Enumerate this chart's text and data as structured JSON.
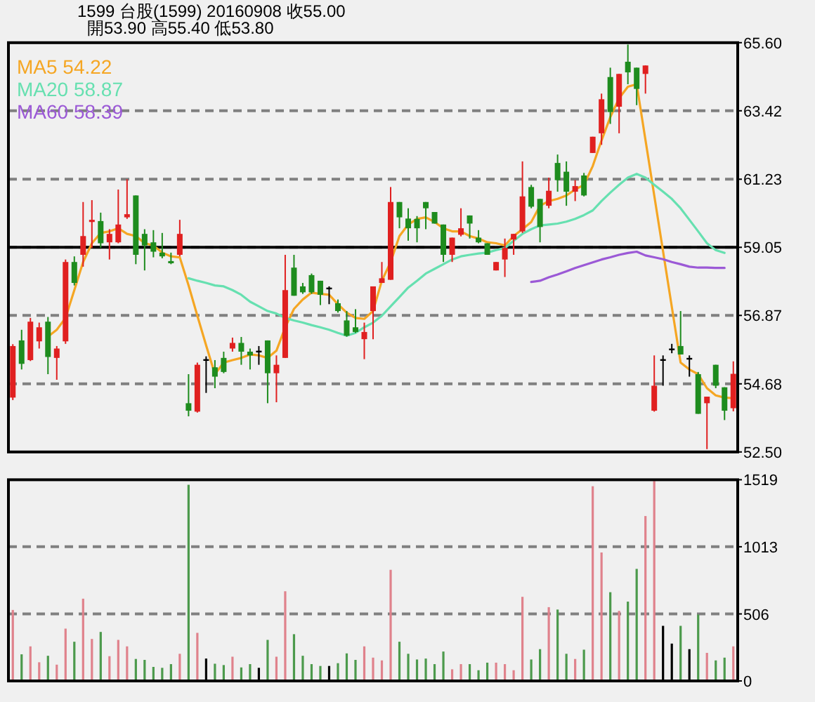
{
  "chart_data": [
    {
      "type": "candlestick",
      "title": "1599  台股(1599)  20160908  收55.00",
      "subtitle": "開53.90  高55.40  低53.80",
      "categories": [
        null,
        null,
        null,
        null,
        null,
        null,
        null,
        null,
        null,
        null,
        null,
        null,
        null,
        null,
        null,
        null,
        null,
        null,
        null,
        null,
        null,
        null,
        null,
        null,
        null,
        null,
        null,
        null,
        null,
        null,
        null,
        null,
        null,
        null,
        null,
        null,
        null,
        null,
        null,
        null,
        null,
        null,
        null,
        null,
        null,
        null,
        null,
        null,
        null,
        null,
        null,
        null,
        null,
        null,
        null,
        null,
        null,
        null,
        null,
        null,
        null,
        null,
        null,
        null,
        null,
        null,
        null,
        null,
        null,
        null,
        null,
        null,
        null,
        null,
        null,
        null,
        null,
        null,
        null,
        null,
        null,
        null,
        null
      ],
      "ohlc": [
        [
          54.24,
          55.95,
          54.16,
          55.89
        ],
        [
          56.07,
          56.41,
          55.14,
          55.32
        ],
        [
          55.44,
          56.79,
          55.41,
          56.67
        ],
        [
          56.04,
          56.64,
          55.81,
          56.49
        ],
        [
          56.67,
          56.82,
          54.99,
          55.54
        ],
        [
          55.51,
          55.89,
          54.81,
          55.81
        ],
        [
          56.04,
          58.66,
          55.96,
          58.58
        ],
        [
          58.58,
          58.76,
          57.83,
          57.91
        ],
        [
          58.81,
          60.5,
          58.43,
          59.41
        ],
        [
          59.86,
          60.56,
          59.03,
          59.93
        ],
        [
          59.89,
          60.16,
          59.03,
          59.18
        ],
        [
          59.21,
          59.63,
          58.66,
          59.48
        ],
        [
          59.21,
          60.9,
          59.18,
          59.78
        ],
        [
          60.01,
          61.23,
          59.96,
          60.11
        ],
        [
          60.71,
          60.71,
          58.51,
          58.81
        ],
        [
          59.48,
          59.63,
          58.31,
          59.11
        ],
        [
          59.21,
          59.6,
          58.73,
          58.91
        ],
        [
          58.88,
          59.51,
          58.7,
          58.76
        ],
        [
          58.61,
          58.88,
          58.51,
          58.54
        ],
        [
          58.81,
          59.93,
          58.76,
          59.48
        ],
        [
          54.06,
          54.99,
          53.64,
          53.82
        ],
        [
          53.79,
          55.36,
          53.76,
          55.29
        ],
        [
          55.47,
          55.56,
          54.39,
          55.47
        ],
        [
          55.21,
          55.44,
          54.54,
          54.91
        ],
        [
          55.51,
          55.71,
          55.02,
          55.06
        ],
        [
          55.81,
          56.16,
          55.71,
          55.99
        ],
        [
          55.99,
          56.18,
          55.29,
          55.71
        ],
        [
          55.71,
          55.81,
          55.14,
          55.59
        ],
        [
          55.74,
          55.89,
          55.29,
          55.74
        ],
        [
          56.07,
          56.07,
          54.06,
          55.02
        ],
        [
          55.02,
          55.59,
          54.09,
          55.29
        ],
        [
          55.51,
          58.81,
          55.51,
          57.68
        ],
        [
          58.4,
          58.81,
          57.5,
          57.5
        ],
        [
          57.8,
          57.91,
          57.56,
          57.61
        ],
        [
          58.16,
          58.21,
          57.56,
          57.61
        ],
        [
          57.98,
          57.98,
          57.2,
          57.53
        ],
        [
          57.76,
          57.8,
          57.23,
          57.76
        ],
        [
          57.26,
          57.38,
          56.96,
          57.01
        ],
        [
          56.71,
          57.01,
          56.19,
          56.22
        ],
        [
          56.49,
          57.07,
          56.31,
          56.34
        ],
        [
          56.11,
          56.64,
          55.47,
          56.34
        ],
        [
          57.01,
          57.8,
          56.11,
          57.8
        ],
        [
          57.91,
          58.58,
          57.91,
          58.06
        ],
        [
          58.01,
          60.98,
          58.01,
          60.5
        ],
        [
          60.5,
          60.5,
          59.66,
          60.01
        ],
        [
          59.97,
          60.3,
          59.26,
          59.66
        ],
        [
          59.96,
          60.05,
          59.21,
          59.66
        ],
        [
          60.5,
          60.5,
          59.63,
          60.3
        ],
        [
          60.18,
          60.18,
          59.81,
          59.81
        ],
        [
          59.78,
          59.78,
          58.58,
          58.81
        ],
        [
          58.81,
          59.36,
          58.58,
          59.36
        ],
        [
          59.45,
          60.3,
          59.4,
          59.66
        ],
        [
          60.07,
          60.07,
          59.33,
          59.81
        ],
        [
          59.36,
          59.6,
          59.18,
          59.21
        ],
        [
          59.18,
          59.18,
          58.81,
          58.81
        ],
        [
          58.31,
          58.58,
          58.31,
          58.58
        ],
        [
          58.66,
          59.33,
          58.1,
          59.03
        ],
        [
          59.3,
          59.48,
          58.81,
          59.48
        ],
        [
          59.56,
          61.8,
          59.51,
          60.68
        ],
        [
          60.98,
          61.05,
          60.3,
          60.35
        ],
        [
          60.6,
          60.6,
          59.21,
          59.7
        ],
        [
          60.38,
          61.28,
          60.3,
          60.86
        ],
        [
          61.75,
          62.02,
          60.83,
          61.2
        ],
        [
          61.47,
          61.8,
          60.38,
          60.83
        ],
        [
          60.83,
          61.2,
          60.53,
          61.01
        ],
        [
          61.35,
          61.43,
          60.68,
          60.71
        ],
        [
          62.07,
          62.59,
          62.07,
          62.59
        ],
        [
          62.7,
          63.97,
          62.33,
          63.79
        ],
        [
          64.5,
          64.8,
          63.0,
          63.38
        ],
        [
          63.55,
          64.6,
          62.7,
          64.6
        ],
        [
          64.99,
          65.54,
          64.27,
          64.65
        ],
        [
          64.8,
          64.8,
          63.6,
          64.12
        ],
        [
          64.6,
          64.87,
          63.97,
          64.87
        ],
        [
          53.82,
          55.59,
          53.79,
          54.62
        ],
        [
          55.47,
          55.59,
          54.62,
          55.47
        ],
        [
          55.81,
          55.96,
          55.66,
          55.81
        ],
        [
          55.89,
          57.01,
          55.62,
          55.62
        ],
        [
          55.51,
          55.59,
          54.91,
          55.51
        ],
        [
          54.99,
          55.06,
          53.72,
          53.72
        ],
        [
          54.06,
          54.27,
          52.59,
          54.27
        ],
        [
          55.29,
          55.29,
          54.54,
          54.62
        ],
        [
          54.57,
          54.57,
          53.52,
          53.82
        ],
        [
          53.9,
          55.4,
          53.8,
          55.0
        ]
      ],
      "series": [
        {
          "name": "MA5 54.22",
          "type": "line",
          "color": "#f5a623",
          "values": [
            null,
            null,
            null,
            null,
            56.19,
            56.41,
            56.79,
            57.68,
            58.58,
            59.18,
            59.51,
            59.56,
            59.66,
            59.48,
            59.41,
            59.18,
            59.11,
            58.88,
            58.76,
            58.73,
            57.83,
            56.86,
            55.91,
            54.99,
            55.36,
            55.44,
            55.51,
            55.62,
            55.59,
            55.51,
            55.74,
            56.49,
            57.08,
            57.38,
            57.6,
            57.56,
            57.53,
            57.23,
            56.96,
            56.79,
            56.76,
            57.01,
            57.98,
            58.58,
            59.41,
            59.78,
            59.96,
            60.01,
            59.86,
            59.66,
            59.56,
            59.56,
            59.41,
            59.33,
            59.21,
            59.18,
            59.11,
            59.41,
            59.63,
            59.86,
            60.38,
            60.53,
            60.6,
            60.71,
            60.9,
            61.05,
            61.65,
            62.47,
            63.22,
            63.82,
            64.19,
            64.27,
            62.49,
            60.71,
            58.93,
            57.14,
            55.36,
            55.14,
            54.99,
            54.54,
            54.31,
            54.24,
            54.22
          ]
        },
        {
          "name": "MA20 58.87",
          "type": "line",
          "color": "#66e0b0",
          "values": [
            null,
            null,
            null,
            null,
            null,
            null,
            null,
            null,
            null,
            null,
            null,
            null,
            null,
            null,
            null,
            null,
            null,
            null,
            null,
            null,
            58.06,
            57.98,
            57.91,
            57.83,
            57.8,
            57.68,
            57.53,
            57.31,
            57.16,
            57.01,
            56.93,
            56.79,
            56.71,
            56.64,
            56.56,
            56.49,
            56.41,
            56.31,
            56.22,
            56.31,
            56.49,
            56.64,
            56.86,
            57.16,
            57.46,
            57.76,
            57.98,
            58.21,
            58.36,
            58.51,
            58.66,
            58.76,
            58.81,
            58.85,
            58.88,
            58.96,
            59.03,
            59.26,
            59.48,
            59.63,
            59.75,
            59.78,
            59.81,
            59.87,
            59.96,
            60.08,
            60.23,
            60.53,
            60.8,
            61.05,
            61.28,
            61.4,
            61.28,
            61.05,
            60.83,
            60.6,
            60.3,
            59.93,
            59.56,
            59.18,
            58.96,
            58.87,
            null
          ]
        },
        {
          "name": "MA60 58.39",
          "type": "line",
          "color": "#9b59d6",
          "values": [
            null,
            null,
            null,
            null,
            null,
            null,
            null,
            null,
            null,
            null,
            null,
            null,
            null,
            null,
            null,
            null,
            null,
            null,
            null,
            null,
            null,
            null,
            null,
            null,
            null,
            null,
            null,
            null,
            null,
            null,
            null,
            null,
            null,
            null,
            null,
            null,
            null,
            null,
            null,
            null,
            null,
            null,
            null,
            null,
            null,
            null,
            null,
            null,
            null,
            null,
            null,
            null,
            null,
            null,
            null,
            null,
            null,
            null,
            null,
            57.94,
            57.98,
            58.09,
            58.18,
            58.28,
            58.39,
            58.48,
            58.57,
            58.66,
            58.73,
            58.81,
            58.87,
            58.91,
            58.79,
            58.73,
            58.67,
            58.58,
            58.51,
            58.43,
            58.4,
            58.4,
            58.39,
            58.39,
            null
          ]
        }
      ],
      "ylim": [
        52.5,
        65.6
      ],
      "yticks": [
        {
          "value": 52.5,
          "label": "52.50"
        },
        {
          "value": 54.68,
          "label": "54.68"
        },
        {
          "value": 56.87,
          "label": "56.87"
        },
        {
          "value": 59.05,
          "label": "59.05"
        },
        {
          "value": 61.23,
          "label": "61.23"
        },
        {
          "value": 63.42,
          "label": "63.42"
        },
        {
          "value": 65.6,
          "label": "65.60"
        }
      ],
      "ref_lines": [
        {
          "axis": "y",
          "value": 59.05,
          "color": "#000000",
          "line_style": "solid"
        }
      ],
      "grid": "y",
      "legend": "top left",
      "tick_labels": "y"
    },
    {
      "type": "bar",
      "categories": [
        null,
        null,
        null,
        null,
        null,
        null,
        null,
        null,
        null,
        null,
        null,
        null,
        null,
        null,
        null,
        null,
        null,
        null,
        null,
        null,
        null,
        null,
        null,
        null,
        null,
        null,
        null,
        null,
        null,
        null,
        null,
        null,
        null,
        null,
        null,
        null,
        null,
        null,
        null,
        null,
        null,
        null,
        null,
        null,
        null,
        null,
        null,
        null,
        null,
        null,
        null,
        null,
        null,
        null,
        null,
        null,
        null,
        null,
        null,
        null,
        null,
        null,
        null,
        null,
        null,
        null,
        null,
        null,
        null,
        null,
        null,
        null,
        null,
        null,
        null,
        null,
        null,
        null,
        null,
        null,
        null,
        null,
        null
      ],
      "values": [
        536,
        201,
        261,
        141,
        190,
        123,
        395,
        296,
        621,
        317,
        370,
        187,
        310,
        261,
        166,
        159,
        106,
        99,
        127,
        205,
        1481,
        363,
        169,
        130,
        120,
        183,
        102,
        127,
        99,
        310,
        183,
        677,
        353,
        190,
        127,
        113,
        113,
        134,
        208,
        159,
        261,
        176,
        155,
        839,
        296,
        205,
        162,
        169,
        127,
        222,
        88,
        127,
        127,
        81,
        138,
        138,
        127,
        81,
        635,
        162,
        240,
        557,
        539,
        205,
        166,
        236,
        1470,
        970,
        670,
        529,
        599,
        846,
        1245,
        1510,
        416,
        282,
        416,
        240,
        501,
        212,
        155,
        176,
        261
      ],
      "colors": [
        "#e0828c",
        "#4c9a4c",
        "#e0828c",
        "#e0828c",
        "#4c9a4c",
        "#e0828c",
        "#e0828c",
        "#4c9a4c",
        "#e0828c",
        "#e0828c",
        "#4c9a4c",
        "#e0828c",
        "#e0828c",
        "#e0828c",
        "#4c9a4c",
        "#4c9a4c",
        "#4c9a4c",
        "#4c9a4c",
        "#4c9a4c",
        "#e0828c",
        "#4c9a4c",
        "#e0828c",
        "#000000",
        "#4c9a4c",
        "#4c9a4c",
        "#e0828c",
        "#4c9a4c",
        "#4c9a4c",
        "#000000",
        "#4c9a4c",
        "#e0828c",
        "#e0828c",
        "#4c9a4c",
        "#4c9a4c",
        "#4c9a4c",
        "#4c9a4c",
        "#000000",
        "#4c9a4c",
        "#4c9a4c",
        "#4c9a4c",
        "#e0828c",
        "#e0828c",
        "#e0828c",
        "#e0828c",
        "#4c9a4c",
        "#4c9a4c",
        "#4c9a4c",
        "#4c9a4c",
        "#4c9a4c",
        "#4c9a4c",
        "#e0828c",
        "#e0828c",
        "#4c9a4c",
        "#4c9a4c",
        "#4c9a4c",
        "#e0828c",
        "#e0828c",
        "#e0828c",
        "#e0828c",
        "#4c9a4c",
        "#4c9a4c",
        "#e0828c",
        "#4c9a4c",
        "#4c9a4c",
        "#e0828c",
        "#4c9a4c",
        "#e0828c",
        "#e0828c",
        "#4c9a4c",
        "#e0828c",
        "#4c9a4c",
        "#4c9a4c",
        "#e0828c",
        "#e0828c",
        "#000000",
        "#000000",
        "#4c9a4c",
        "#000000",
        "#4c9a4c",
        "#e0828c",
        "#4c9a4c",
        "#4c9a4c",
        "#e0828c"
      ],
      "ylim": [
        0,
        1519
      ],
      "yticks": [
        0,
        506,
        1013,
        1519
      ],
      "grid": "y",
      "tick_labels": "y"
    }
  ]
}
